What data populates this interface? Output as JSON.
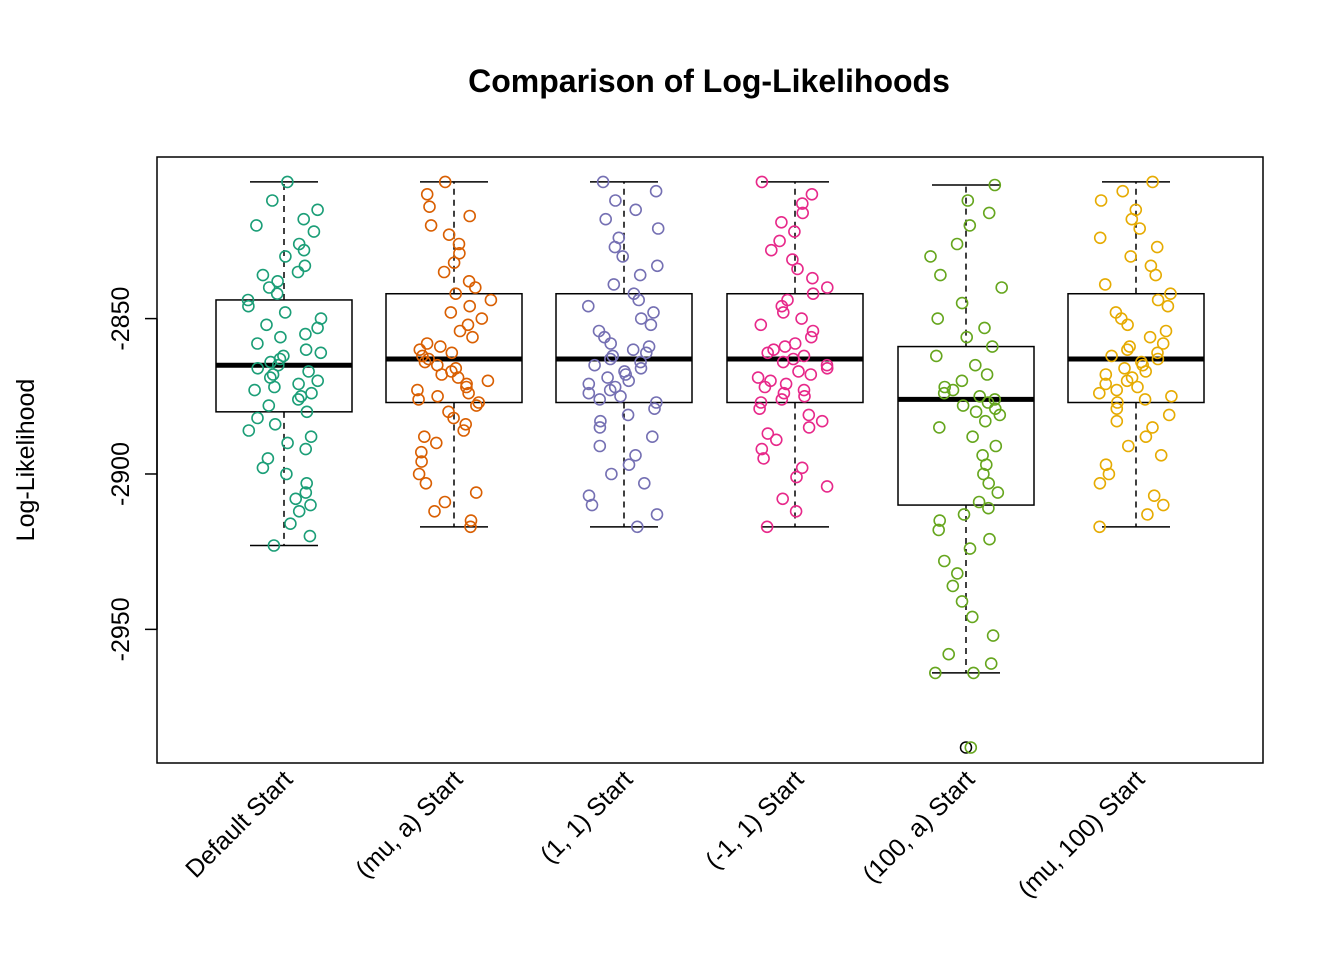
{
  "chart_data": {
    "type": "box",
    "title": "Comparison of Log-Likelihoods",
    "xlabel": "",
    "ylabel": "Log-Likelihood",
    "ylim": [
      -2993,
      -2798
    ],
    "yticks": [
      -2850,
      -2900,
      -2950
    ],
    "ytick_labels": [
      "-2850",
      "-2900",
      "-2950"
    ],
    "grid": false,
    "legend": "none",
    "categories": [
      "Default Start",
      "(mu, a) Start",
      "(1, 1) Start",
      "(-1, 1) Start",
      "(100, a) Start",
      "(mu, 100) Start"
    ],
    "series": [
      {
        "color": "#1B9E77",
        "box": {
          "whisker_low": -2923,
          "q1": -2880,
          "median": -2865,
          "q3": -2844,
          "whisker_high": -2806
        },
        "outliers": [],
        "points": [
          -2806,
          -2812,
          -2815,
          -2818,
          -2820,
          -2822,
          -2826,
          -2828,
          -2830,
          -2833,
          -2835,
          -2836,
          -2838,
          -2840,
          -2842,
          -2844,
          -2846,
          -2848,
          -2850,
          -2852,
          -2853,
          -2855,
          -2856,
          -2858,
          -2860,
          -2861,
          -2862,
          -2863,
          -2864,
          -2865,
          -2866,
          -2867,
          -2868,
          -2869,
          -2870,
          -2871,
          -2872,
          -2873,
          -2874,
          -2875,
          -2876,
          -2878,
          -2880,
          -2882,
          -2884,
          -2886,
          -2888,
          -2890,
          -2892,
          -2895,
          -2898,
          -2900,
          -2903,
          -2906,
          -2908,
          -2910,
          -2912,
          -2916,
          -2920,
          -2923
        ]
      },
      {
        "color": "#D95F02",
        "box": {
          "whisker_low": -2917,
          "q1": -2877,
          "median": -2863,
          "q3": -2842,
          "whisker_high": -2806
        },
        "outliers": [],
        "points": [
          -2806,
          -2810,
          -2814,
          -2817,
          -2820,
          -2823,
          -2826,
          -2829,
          -2832,
          -2835,
          -2838,
          -2840,
          -2842,
          -2844,
          -2846,
          -2848,
          -2850,
          -2852,
          -2854,
          -2856,
          -2858,
          -2859,
          -2860,
          -2861,
          -2862,
          -2863,
          -2864,
          -2865,
          -2866,
          -2867,
          -2868,
          -2869,
          -2870,
          -2871,
          -2872,
          -2873,
          -2874,
          -2875,
          -2876,
          -2877,
          -2878,
          -2880,
          -2882,
          -2884,
          -2886,
          -2888,
          -2890,
          -2893,
          -2896,
          -2900,
          -2903,
          -2906,
          -2909,
          -2912,
          -2915,
          -2917
        ]
      },
      {
        "color": "#7570B3",
        "box": {
          "whisker_low": -2917,
          "q1": -2877,
          "median": -2863,
          "q3": -2842,
          "whisker_high": -2806
        },
        "outliers": [],
        "points": [
          -2806,
          -2809,
          -2812,
          -2815,
          -2818,
          -2821,
          -2824,
          -2827,
          -2830,
          -2833,
          -2836,
          -2839,
          -2842,
          -2844,
          -2846,
          -2848,
          -2850,
          -2852,
          -2854,
          -2856,
          -2858,
          -2859,
          -2860,
          -2861,
          -2862,
          -2863,
          -2864,
          -2865,
          -2866,
          -2867,
          -2868,
          -2869,
          -2870,
          -2871,
          -2872,
          -2873,
          -2874,
          -2875,
          -2876,
          -2877,
          -2879,
          -2881,
          -2883,
          -2885,
          -2888,
          -2891,
          -2894,
          -2897,
          -2900,
          -2903,
          -2907,
          -2910,
          -2913,
          -2917
        ]
      },
      {
        "color": "#E7298A",
        "box": {
          "whisker_low": -2917,
          "q1": -2877,
          "median": -2863,
          "q3": -2842,
          "whisker_high": -2806
        },
        "outliers": [],
        "points": [
          -2806,
          -2810,
          -2813,
          -2816,
          -2819,
          -2822,
          -2825,
          -2828,
          -2831,
          -2834,
          -2837,
          -2840,
          -2842,
          -2844,
          -2846,
          -2848,
          -2850,
          -2852,
          -2854,
          -2856,
          -2858,
          -2859,
          -2860,
          -2861,
          -2862,
          -2863,
          -2864,
          -2865,
          -2866,
          -2867,
          -2868,
          -2869,
          -2870,
          -2871,
          -2872,
          -2873,
          -2874,
          -2875,
          -2876,
          -2877,
          -2879,
          -2881,
          -2883,
          -2885,
          -2887,
          -2889,
          -2892,
          -2895,
          -2898,
          -2901,
          -2904,
          -2908,
          -2912,
          -2917
        ]
      },
      {
        "color": "#66A61E",
        "box": {
          "whisker_low": -2964,
          "q1": -2910,
          "median": -2876,
          "q3": -2859,
          "whisker_high": -2807
        },
        "outliers": [
          -2988
        ],
        "points": [
          -2807,
          -2812,
          -2816,
          -2820,
          -2826,
          -2830,
          -2836,
          -2840,
          -2845,
          -2850,
          -2853,
          -2856,
          -2859,
          -2862,
          -2865,
          -2868,
          -2870,
          -2872,
          -2873,
          -2874,
          -2875,
          -2876,
          -2877,
          -2878,
          -2879,
          -2880,
          -2881,
          -2883,
          -2885,
          -2888,
          -2891,
          -2894,
          -2897,
          -2900,
          -2903,
          -2906,
          -2909,
          -2911,
          -2913,
          -2915,
          -2918,
          -2921,
          -2924,
          -2928,
          -2932,
          -2936,
          -2941,
          -2946,
          -2952,
          -2958,
          -2961,
          -2964,
          -2964,
          -2988
        ]
      },
      {
        "color": "#E6AB02",
        "box": {
          "whisker_low": -2917,
          "q1": -2877,
          "median": -2863,
          "q3": -2842,
          "whisker_high": -2806
        },
        "outliers": [],
        "points": [
          -2806,
          -2809,
          -2812,
          -2815,
          -2818,
          -2821,
          -2824,
          -2827,
          -2830,
          -2833,
          -2836,
          -2839,
          -2842,
          -2844,
          -2846,
          -2848,
          -2850,
          -2852,
          -2854,
          -2856,
          -2858,
          -2859,
          -2860,
          -2861,
          -2862,
          -2863,
          -2864,
          -2865,
          -2866,
          -2867,
          -2868,
          -2869,
          -2870,
          -2871,
          -2872,
          -2873,
          -2874,
          -2875,
          -2876,
          -2877,
          -2879,
          -2881,
          -2883,
          -2885,
          -2888,
          -2891,
          -2894,
          -2897,
          -2900,
          -2903,
          -2907,
          -2910,
          -2913,
          -2917
        ]
      }
    ]
  }
}
